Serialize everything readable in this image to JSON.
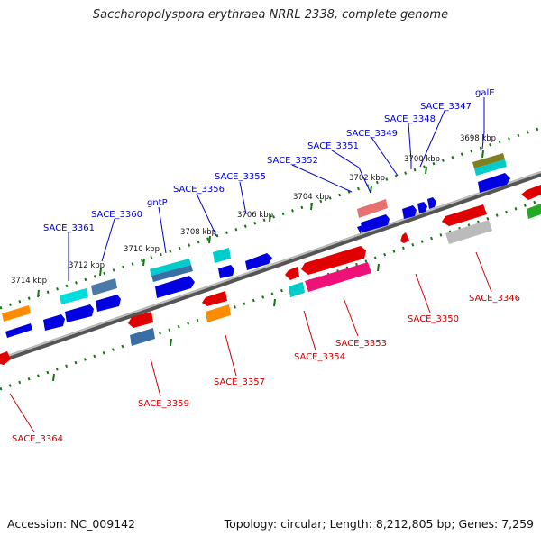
{
  "title": "Saccharopolyspora erythraea NRRL 2338, complete genome",
  "accession": "Accession: NC_009142",
  "summary": "Topology: circular; Length: 8,212,805 bp; Genes: 7,259",
  "colors": {
    "backbone": "#888888",
    "label_forward": "#0000cc",
    "label_reverse": "#cc0000",
    "tick": "#117711"
  },
  "ticks": [
    {
      "label": "3714 kbp"
    },
    {
      "label": "3712 kbp"
    },
    {
      "label": "3710 kbp"
    },
    {
      "label": "3708 kbp"
    },
    {
      "label": "3706 kbp"
    },
    {
      "label": "3704 kbp"
    },
    {
      "label": "3702 kbp"
    },
    {
      "label": "3700 kbp"
    },
    {
      "label": "3698 kbp"
    }
  ],
  "forward_genes": [
    {
      "label": "SACE_3361"
    },
    {
      "label": "SACE_3360"
    },
    {
      "label": "gntP"
    },
    {
      "label": "SACE_3356"
    },
    {
      "label": "SACE_3355"
    },
    {
      "label": "SACE_3352"
    },
    {
      "label": "SACE_3351"
    },
    {
      "label": "SACE_3349"
    },
    {
      "label": "SACE_3348"
    },
    {
      "label": "SACE_3347"
    },
    {
      "label": "galE"
    }
  ],
  "reverse_genes": [
    {
      "label": "SACE_3364"
    },
    {
      "label": "SACE_3359"
    },
    {
      "label": "SACE_3357"
    },
    {
      "label": "SACE_3354"
    },
    {
      "label": "SACE_3353"
    },
    {
      "label": "SACE_3350"
    },
    {
      "label": "SACE_3346"
    }
  ]
}
